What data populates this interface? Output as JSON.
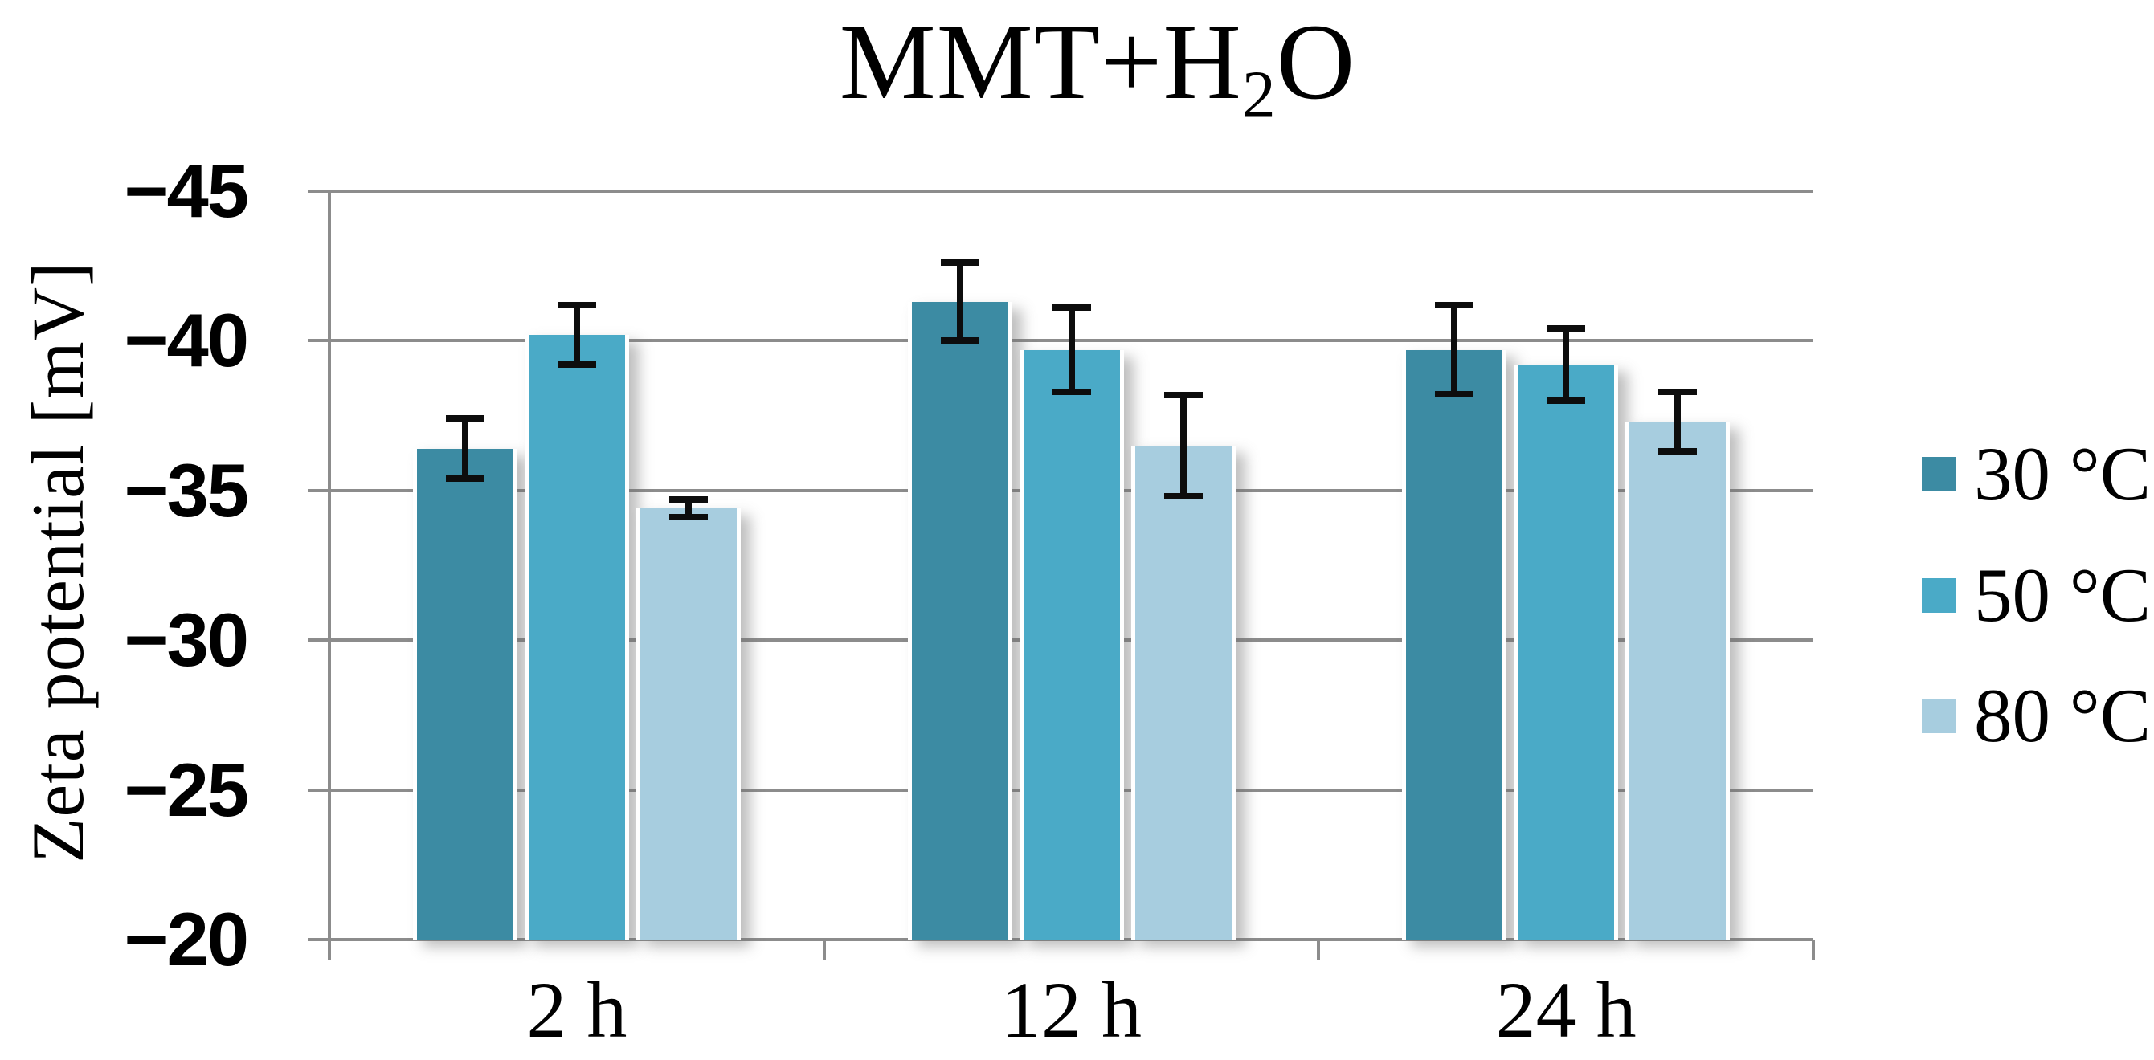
{
  "title": {
    "prefix": "MMT+H",
    "sub": "2",
    "suffix": "O"
  },
  "chart_data": {
    "type": "bar",
    "title": "MMT+H2O",
    "categories": [
      "2 h",
      "12 h",
      "24 h"
    ],
    "series": [
      {
        "name": "30 °C",
        "color": "#3c8ba3",
        "values": [
          -36.4,
          -41.3,
          -39.7
        ],
        "errors": [
          1.0,
          1.3,
          1.5
        ]
      },
      {
        "name": "50 °C",
        "color": "#4aaac7",
        "values": [
          -40.2,
          -39.7,
          -39.2
        ],
        "errors": [
          1.0,
          1.4,
          1.2
        ]
      },
      {
        "name": "80 °C",
        "color": "#a7cddf",
        "values": [
          -34.4,
          -36.5,
          -37.3
        ],
        "errors": [
          0.3,
          1.7,
          1.0
        ]
      }
    ],
    "xlabel": "",
    "ylabel": "Zeta potential [mV]",
    "ylim": [
      -45,
      -20
    ],
    "y_axis_inverted": true,
    "yticks": [
      -45,
      -40,
      -35,
      -30,
      -25,
      -20
    ],
    "grid": true,
    "gridline_color": "#8c8c8c",
    "error_bar_color": "#0d0d0d",
    "legend_position": "right"
  }
}
